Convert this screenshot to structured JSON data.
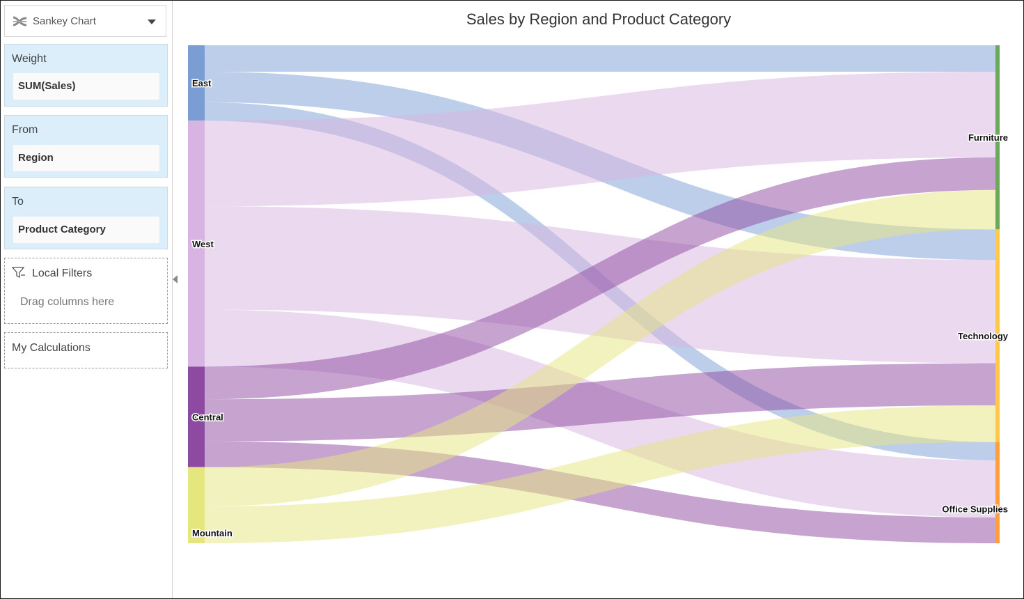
{
  "sidebar": {
    "chart_type": {
      "label": "Sankey Chart",
      "icon": "sankey-icon"
    },
    "weight": {
      "title": "Weight",
      "value": "SUM(Sales)"
    },
    "from": {
      "title": "From",
      "value": "Region"
    },
    "to": {
      "title": "To",
      "value": "Product Category"
    },
    "local_filters": {
      "title": "Local Filters",
      "hint": "Drag columns here",
      "icon": "filter-icon"
    },
    "my_calculations": {
      "title": "My Calculations"
    }
  },
  "colors": {
    "East": "#7a9ed4",
    "West": "#d8b4e2",
    "Central": "#8e4aa0",
    "Mountain": "#e6e67f",
    "Furniture": "#6aaa5a",
    "Technology": "#ffc84a",
    "Office Supplies": "#ff9e3d"
  },
  "chart_data": {
    "type": "sankey",
    "title": "Sales by Region and Product Category",
    "sources": [
      "East",
      "West",
      "Central",
      "Mountain"
    ],
    "targets": [
      "Furniture",
      "Technology",
      "Office Supplies"
    ],
    "links": [
      {
        "source": "East",
        "target": "Furniture",
        "value": 39
      },
      {
        "source": "East",
        "target": "Technology",
        "value": 45
      },
      {
        "source": "East",
        "target": "Office Supplies",
        "value": 27
      },
      {
        "source": "West",
        "target": "Furniture",
        "value": 126
      },
      {
        "source": "West",
        "target": "Technology",
        "value": 152
      },
      {
        "source": "West",
        "target": "Office Supplies",
        "value": 84
      },
      {
        "source": "Central",
        "target": "Furniture",
        "value": 48
      },
      {
        "source": "Central",
        "target": "Technology",
        "value": 62
      },
      {
        "source": "Central",
        "target": "Office Supplies",
        "value": 38
      },
      {
        "source": "Mountain",
        "target": "Furniture",
        "value": 58
      },
      {
        "source": "Mountain",
        "target": "Technology",
        "value": 54
      },
      {
        "source": "Mountain",
        "target": "Office Supplies",
        "value": 0
      }
    ]
  }
}
